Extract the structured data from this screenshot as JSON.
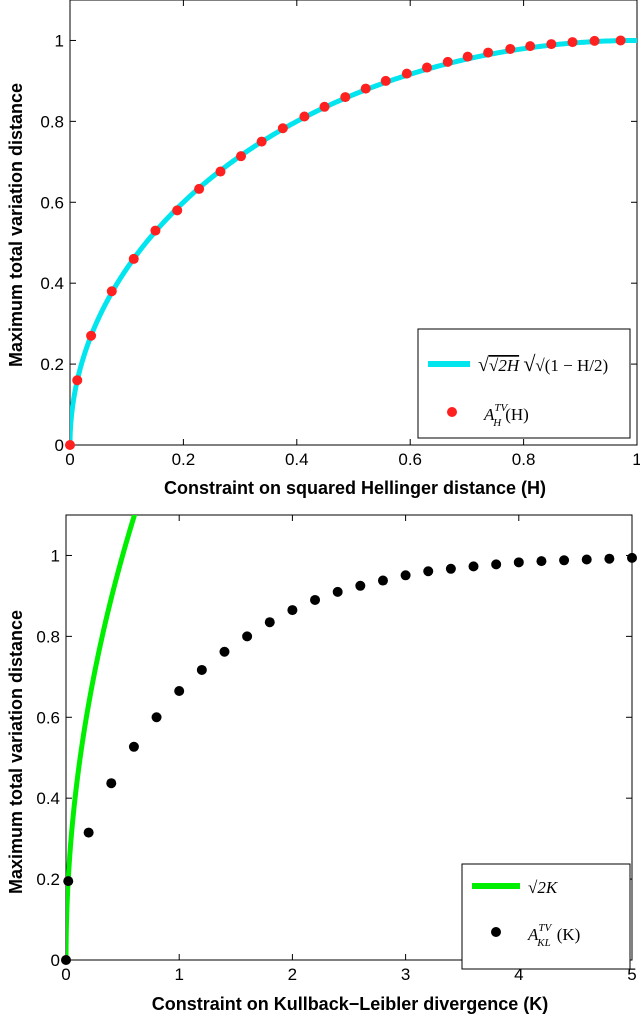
{
  "chart_data": [
    {
      "type": "line",
      "title": "",
      "xlabel": "Constraint on squared Hellinger distance (H)",
      "ylabel": "Maximum total variation distance",
      "xlim": [
        0,
        1
      ],
      "ylim": [
        0,
        1.1
      ],
      "xticks": [
        0,
        0.2,
        0.4,
        0.6,
        0.8,
        1
      ],
      "xtick_labels": [
        "0",
        "0.2",
        "0.4",
        "0.6",
        "0.8",
        "1"
      ],
      "yticks": [
        0,
        0.2,
        0.4,
        0.6,
        0.8,
        1
      ],
      "ytick_labels": [
        "0",
        "0.2",
        "0.4",
        "0.6",
        "0.8",
        "1"
      ],
      "grid": false,
      "legend_position": "bottom-right",
      "series": [
        {
          "name": "√2H√(1 − H/2)",
          "style": "line",
          "color": "#00e5ee",
          "formula": "sqrt(2H)*sqrt(1-H/2)"
        },
        {
          "name": "A_H^TV(H)",
          "style": "markers",
          "color": "#ff2020",
          "x": [
            0,
            0.0128,
            0.0372,
            0.0737,
            0.1124,
            0.1507,
            0.1891,
            0.2277,
            0.2654,
            0.3016,
            0.338,
            0.3754,
            0.4134,
            0.4489,
            0.4855,
            0.5216,
            0.5569,
            0.5941,
            0.6296,
            0.6663,
            0.7014,
            0.7375,
            0.7765,
            0.8116,
            0.8489,
            0.8862,
            0.9251,
            0.9711
          ],
          "y": [
            0,
            0.16,
            0.27,
            0.38,
            0.46,
            0.53,
            0.58,
            0.633,
            0.676,
            0.714,
            0.75,
            0.783,
            0.812,
            0.836,
            0.86,
            0.881,
            0.9,
            0.918,
            0.933,
            0.947,
            0.96,
            0.97,
            0.979,
            0.986,
            0.991,
            0.996,
            0.999,
            1.0
          ]
        }
      ]
    },
    {
      "type": "line",
      "title": "",
      "xlabel": "Constraint on Kullback−Leibler divergence (K)",
      "ylabel": "Maximum total variation distance",
      "xlim": [
        0,
        5
      ],
      "ylim": [
        0,
        1.1
      ],
      "xticks": [
        0,
        1,
        2,
        3,
        4,
        5
      ],
      "xtick_labels": [
        "0",
        "1",
        "2",
        "3",
        "4",
        "5"
      ],
      "yticks": [
        0,
        0.2,
        0.4,
        0.6,
        0.8,
        1
      ],
      "ytick_labels": [
        "0",
        "0.2",
        "0.4",
        "0.6",
        "0.8",
        "1"
      ],
      "grid": false,
      "legend_position": "bottom-right",
      "series": [
        {
          "name": "√2K",
          "style": "line",
          "color": "#00ee00",
          "formula": "sqrt(2K)"
        },
        {
          "name": "A_KL^TV(K)",
          "style": "markers",
          "color": "#000000",
          "x": [
            0,
            0.02,
            0.2,
            0.4,
            0.6,
            0.8,
            1.0,
            1.2,
            1.4,
            1.6,
            1.8,
            2.0,
            2.2,
            2.4,
            2.6,
            2.8,
            3.0,
            3.2,
            3.4,
            3.6,
            3.8,
            4.0,
            4.2,
            4.4,
            4.6,
            4.8,
            5.0
          ],
          "y": [
            0,
            0.195,
            0.315,
            0.437,
            0.527,
            0.6,
            0.665,
            0.717,
            0.762,
            0.8,
            0.835,
            0.865,
            0.89,
            0.91,
            0.925,
            0.938,
            0.951,
            0.961,
            0.967,
            0.973,
            0.978,
            0.983,
            0.986,
            0.988,
            0.99,
            0.992,
            0.994
          ]
        }
      ]
    }
  ],
  "legends": [
    {
      "line_label": "√2H",
      "line_label_extra": "√(1 − H/2)",
      "marker_label": "A",
      "marker_sub": "H",
      "marker_sup": "TV",
      "marker_arg": "(H)"
    },
    {
      "line_label": "√2K",
      "marker_label": "A",
      "marker_sub": "KL",
      "marker_sup": "TV",
      "marker_arg": "(K)"
    }
  ]
}
